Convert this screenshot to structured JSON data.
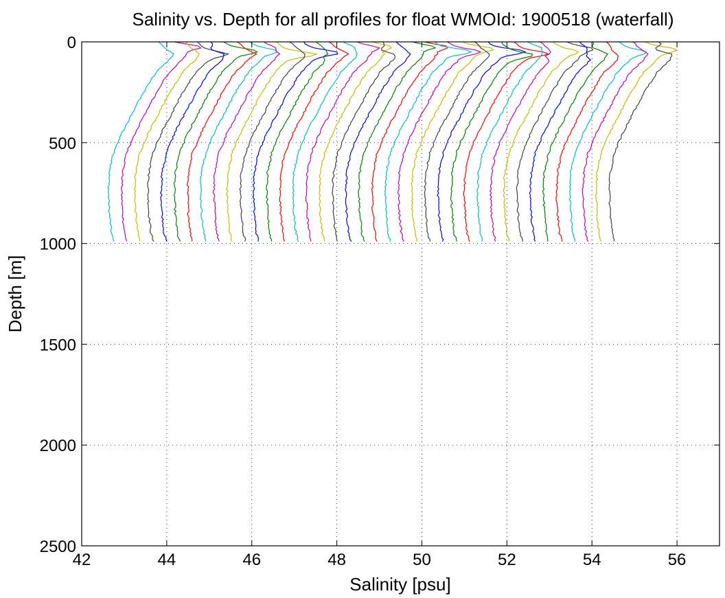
{
  "chart_data": {
    "type": "line",
    "title": "Salinity vs. Depth for all profiles for float WMOId: 1900518 (waterfall)",
    "xlabel": "Salinity [psu]",
    "ylabel": "Depth [m]",
    "xlim": [
      42,
      57
    ],
    "ylim": [
      0,
      2500
    ],
    "y_reversed": true,
    "grid": true,
    "xticks": [
      "42",
      "44",
      "46",
      "48",
      "50",
      "52",
      "54",
      "56"
    ],
    "xtick_values": [
      42,
      44,
      46,
      48,
      50,
      52,
      54,
      56
    ],
    "yticks": [
      "0",
      "500",
      "1000",
      "1500",
      "2000",
      "2500"
    ],
    "ytick_values": [
      0,
      500,
      1000,
      1500,
      2000,
      2500
    ],
    "colors": [
      "#00bfbf",
      "#bf00bf",
      "#bfbf00",
      "#404040",
      "#0000ff",
      "#008000",
      "#ff0000"
    ],
    "waterfall": {
      "profile_count": 39,
      "offset_per_profile": 0.31,
      "bottom_salinity_first": 42.65,
      "max_depth": 990
    },
    "base_profile": {
      "depth": [
        0,
        30,
        60,
        90,
        150,
        250,
        350,
        450,
        550,
        650,
        750,
        850,
        950,
        990
      ],
      "salinity_offset": [
        1.15,
        1.3,
        1.5,
        1.4,
        1.1,
        0.8,
        0.55,
        0.3,
        0.1,
        0.0,
        -0.02,
        0.0,
        0.05,
        0.1
      ]
    }
  }
}
